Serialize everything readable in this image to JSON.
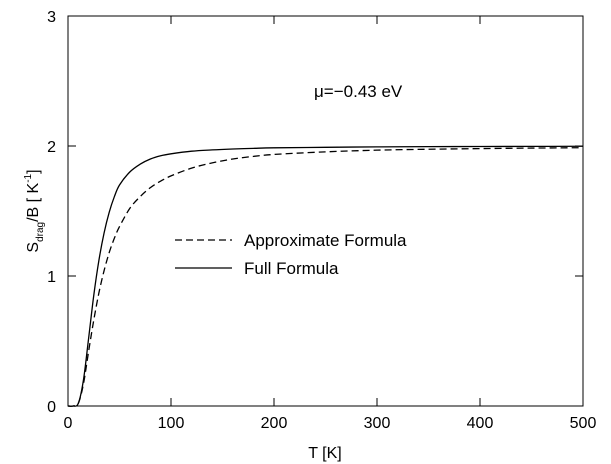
{
  "chart_data": {
    "type": "line",
    "xlabel": "T [K]",
    "ylabel": {
      "main": "S",
      "sub": "drag",
      "mid": "/B  [ K",
      "sup": "-1",
      "end": "]"
    },
    "annotation": "μ=−0.43 eV",
    "xlim": [
      0,
      500
    ],
    "ylim": [
      0,
      3
    ],
    "x_ticks": [
      0,
      100,
      200,
      300,
      400,
      500
    ],
    "y_ticks": [
      0,
      1,
      2,
      3
    ],
    "grid": false,
    "legend_position": "center",
    "series": [
      {
        "name": "Approximate Formula",
        "style": "dashed",
        "color": "#000000",
        "x": [
          0,
          5,
          10,
          15,
          20,
          25,
          30,
          35,
          40,
          45,
          50,
          60,
          70,
          80,
          90,
          100,
          120,
          140,
          160,
          180,
          200,
          250,
          300,
          350,
          400,
          450,
          500
        ],
        "y": [
          0,
          0,
          0.02,
          0.17,
          0.42,
          0.66,
          0.87,
          1.04,
          1.18,
          1.29,
          1.38,
          1.52,
          1.61,
          1.68,
          1.73,
          1.77,
          1.83,
          1.87,
          1.9,
          1.92,
          1.935,
          1.955,
          1.968,
          1.975,
          1.98,
          1.984,
          1.987
        ]
      },
      {
        "name": "Full Formula",
        "style": "solid",
        "color": "#000000",
        "x": [
          0,
          5,
          10,
          15,
          20,
          25,
          30,
          35,
          40,
          45,
          50,
          60,
          70,
          80,
          90,
          100,
          120,
          140,
          160,
          180,
          200,
          250,
          300,
          350,
          400,
          450,
          500
        ],
        "y": [
          0,
          0,
          0.02,
          0.2,
          0.52,
          0.85,
          1.12,
          1.33,
          1.49,
          1.61,
          1.7,
          1.8,
          1.86,
          1.9,
          1.925,
          1.94,
          1.96,
          1.97,
          1.977,
          1.982,
          1.986,
          1.99,
          1.993,
          1.995,
          1.996,
          1.997,
          1.998
        ]
      }
    ]
  }
}
